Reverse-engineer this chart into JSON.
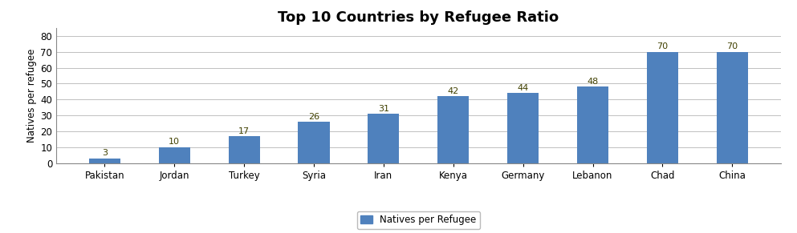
{
  "title": "Top 10 Countries by Refugee Ratio",
  "categories": [
    "Pakistan",
    "Jordan",
    "Turkey",
    "Syria",
    "Iran",
    "Kenya",
    "Germany",
    "Lebanon",
    "Chad",
    "China"
  ],
  "values": [
    3,
    10,
    17,
    26,
    31,
    42,
    44,
    48,
    70,
    70
  ],
  "bar_color": "#4F81BD",
  "ylabel": "Natives per refugee",
  "ylim": [
    0,
    85
  ],
  "yticks": [
    0,
    10,
    20,
    30,
    40,
    50,
    60,
    70,
    80
  ],
  "legend_label": "Natives per Refugee",
  "title_fontsize": 13,
  "label_fontsize": 8,
  "tick_fontsize": 8.5,
  "ylabel_fontsize": 8.5,
  "background_color": "#FFFFFF",
  "grid_color": "#C0C0C0",
  "label_color": "#404000"
}
